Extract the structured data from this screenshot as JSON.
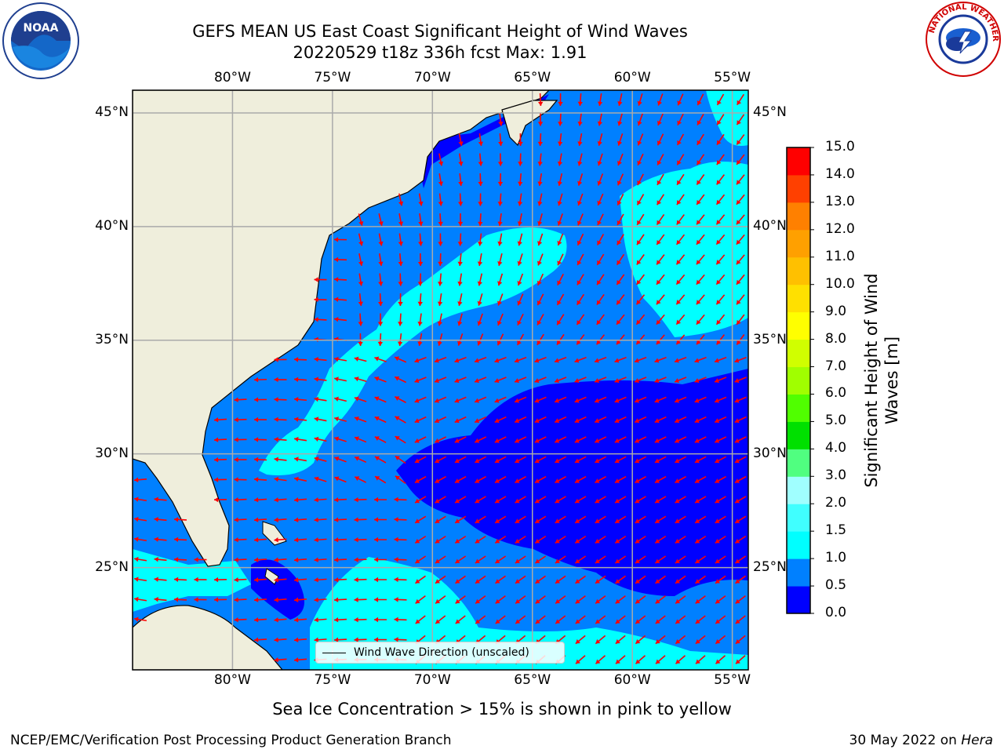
{
  "title_line1": "GEFS MEAN US East Coast Significant Height of Wind Waves",
  "title_line2": "20220529 t18z 336h fcst    Max: 1.91",
  "logos": {
    "left": "noaa-logo",
    "right": "national-weather-service-logo"
  },
  "map": {
    "extent": {
      "lon_min": -85,
      "lon_max": -54.2,
      "lat_min": 20.5,
      "lat_max": 46
    },
    "lon_ticks": [
      {
        "lon": -80,
        "label": "80°W"
      },
      {
        "lon": -75,
        "label": "75°W"
      },
      {
        "lon": -70,
        "label": "70°W"
      },
      {
        "lon": -65,
        "label": "65°W"
      },
      {
        "lon": -60,
        "label": "60°W"
      },
      {
        "lon": -55,
        "label": "55°W"
      }
    ],
    "lat_ticks": [
      {
        "lat": 45,
        "label": "45°N"
      },
      {
        "lat": 40,
        "label": "40°N"
      },
      {
        "lat": 35,
        "label": "35°N"
      },
      {
        "lat": 30,
        "label": "30°N"
      },
      {
        "lat": 25,
        "label": "25°N"
      }
    ],
    "land_color": "#efeedc",
    "legend_label": "Wind Wave Direction (unscaled)",
    "arrow_color": "#ff0000"
  },
  "colorbar": {
    "title": "Significant Height of Wind Waves [m]",
    "levels": [
      "0.0",
      "0.5",
      "1.0",
      "1.5",
      "2.0",
      "3.0",
      "4.0",
      "5.0",
      "6.0",
      "7.0",
      "8.0",
      "9.0",
      "10.0",
      "11.0",
      "12.0",
      "13.0",
      "14.0",
      "15.0"
    ],
    "colors": [
      "#0000ff",
      "#0080ff",
      "#00ffff",
      "#40ffff",
      "#a0ffff",
      "#50ff80",
      "#00e000",
      "#50ff00",
      "#a0ff00",
      "#d0ff00",
      "#ffff00",
      "#ffe000",
      "#ffc000",
      "#ffa000",
      "#ff8000",
      "#ff4000",
      "#ff0000"
    ]
  },
  "footnote": "Sea Ice Concentration > 15% is shown in pink to yellow",
  "credit": "NCEP/EMC/Verification Post Processing Product Generation Branch",
  "date_prefix": "30 May 2022 on ",
  "date_machine": "Hera"
}
